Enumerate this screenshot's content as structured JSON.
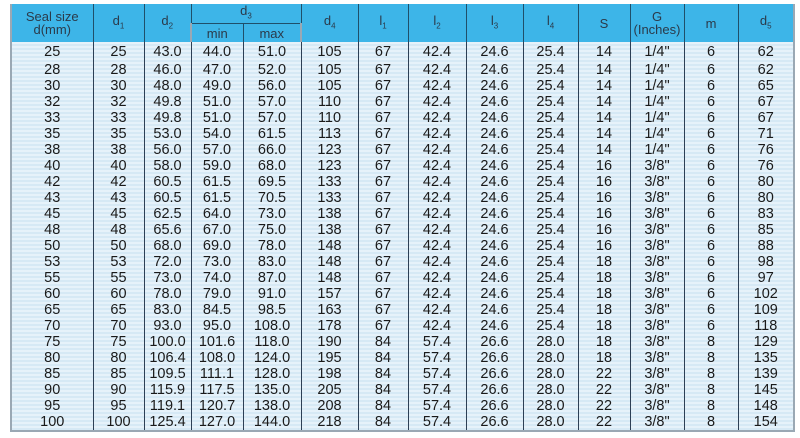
{
  "headers": {
    "seal_size": "Seal size",
    "seal_size_unit": "d(mm)",
    "d1": "d",
    "d1_sub": "1",
    "d2": "d",
    "d2_sub": "2",
    "d3": "d",
    "d3_sub": "3",
    "d3_min": "min",
    "d3_max": "max",
    "d4": "d",
    "d4_sub": "4",
    "l1": "l",
    "l1_sub": "1",
    "l2": "l",
    "l2_sub": "2",
    "l3": "l",
    "l3_sub": "3",
    "l4": "l",
    "l4_sub": "4",
    "s": "S",
    "g": "G",
    "g_unit": "(Inches)",
    "m": "m",
    "d5": "d",
    "d5_sub": "5"
  },
  "header_color": "#3db5e8",
  "rows": [
    [
      "25",
      "25",
      "43.0",
      "44.0",
      "51.0",
      "105",
      "67",
      "42.4",
      "24.6",
      "25.4",
      "14",
      "1/4\"",
      "6",
      "62"
    ],
    [
      "28",
      "28",
      "46.0",
      "47.0",
      "52.0",
      "105",
      "67",
      "42.4",
      "24.6",
      "25.4",
      "14",
      "1/4\"",
      "6",
      "62"
    ],
    [
      "30",
      "30",
      "48.0",
      "49.0",
      "56.0",
      "105",
      "67",
      "42.4",
      "24.6",
      "25.4",
      "14",
      "1/4\"",
      "6",
      "65"
    ],
    [
      "32",
      "32",
      "49.8",
      "51.0",
      "57.0",
      "110",
      "67",
      "42.4",
      "24.6",
      "25.4",
      "14",
      "1/4\"",
      "6",
      "67"
    ],
    [
      "33",
      "33",
      "49.8",
      "51.0",
      "57.0",
      "110",
      "67",
      "42.4",
      "24.6",
      "25.4",
      "14",
      "1/4\"",
      "6",
      "67"
    ],
    [
      "35",
      "35",
      "53.0",
      "54.0",
      "61.5",
      "113",
      "67",
      "42.4",
      "24.6",
      "25.4",
      "14",
      "1/4\"",
      "6",
      "71"
    ],
    [
      "38",
      "38",
      "56.0",
      "57.0",
      "66.0",
      "123",
      "67",
      "42.4",
      "24.6",
      "25.4",
      "14",
      "1/4\"",
      "6",
      "76"
    ],
    [
      "40",
      "40",
      "58.0",
      "59.0",
      "68.0",
      "123",
      "67",
      "42.4",
      "24.6",
      "25.4",
      "16",
      "3/8\"",
      "6",
      "76"
    ],
    [
      "42",
      "42",
      "60.5",
      "61.5",
      "69.5",
      "133",
      "67",
      "42.4",
      "24.6",
      "25.4",
      "16",
      "3/8\"",
      "6",
      "80"
    ],
    [
      "43",
      "43",
      "60.5",
      "61.5",
      "70.5",
      "133",
      "67",
      "42.4",
      "24.6",
      "25.4",
      "16",
      "3/8\"",
      "6",
      "80"
    ],
    [
      "45",
      "45",
      "62.5",
      "64.0",
      "73.0",
      "138",
      "67",
      "42.4",
      "24.6",
      "25.4",
      "16",
      "3/8\"",
      "6",
      "83"
    ],
    [
      "48",
      "48",
      "65.6",
      "67.0",
      "75.0",
      "138",
      "67",
      "42.4",
      "24.6",
      "25.4",
      "16",
      "3/8\"",
      "6",
      "85"
    ],
    [
      "50",
      "50",
      "68.0",
      "69.0",
      "78.0",
      "148",
      "67",
      "42.4",
      "24.6",
      "25.4",
      "16",
      "3/8\"",
      "6",
      "88"
    ],
    [
      "53",
      "53",
      "72.0",
      "73.0",
      "83.0",
      "148",
      "67",
      "42.4",
      "24.6",
      "25.4",
      "18",
      "3/8\"",
      "6",
      "98"
    ],
    [
      "55",
      "55",
      "73.0",
      "74.0",
      "87.0",
      "148",
      "67",
      "42.4",
      "24.6",
      "25.4",
      "18",
      "3/8\"",
      "6",
      "97"
    ],
    [
      "60",
      "60",
      "78.0",
      "79.0",
      "91.0",
      "157",
      "67",
      "42.4",
      "24.6",
      "25.4",
      "18",
      "3/8\"",
      "6",
      "102"
    ],
    [
      "65",
      "65",
      "83.0",
      "84.5",
      "98.5",
      "163",
      "67",
      "42.4",
      "24.6",
      "25.4",
      "18",
      "3/8\"",
      "6",
      "109"
    ],
    [
      "70",
      "70",
      "93.0",
      "95.0",
      "108.0",
      "178",
      "67",
      "42.4",
      "24.6",
      "25.4",
      "18",
      "3/8\"",
      "6",
      "118"
    ],
    [
      "75",
      "75",
      "100.0",
      "101.6",
      "118.0",
      "190",
      "84",
      "57.4",
      "26.6",
      "28.0",
      "18",
      "3/8\"",
      "8",
      "129"
    ],
    [
      "80",
      "80",
      "106.4",
      "108.0",
      "124.0",
      "195",
      "84",
      "57.4",
      "26.6",
      "28.0",
      "18",
      "3/8\"",
      "8",
      "135"
    ],
    [
      "85",
      "85",
      "109.5",
      "111.1",
      "128.0",
      "198",
      "84",
      "57.4",
      "26.6",
      "28.0",
      "22",
      "3/8\"",
      "8",
      "139"
    ],
    [
      "90",
      "90",
      "115.9",
      "117.5",
      "135.0",
      "205",
      "84",
      "57.4",
      "26.6",
      "28.0",
      "22",
      "3/8\"",
      "8",
      "145"
    ],
    [
      "95",
      "95",
      "119.1",
      "120.7",
      "138.0",
      "208",
      "84",
      "57.4",
      "26.6",
      "28.0",
      "22",
      "3/8\"",
      "8",
      "148"
    ],
    [
      "100",
      "100",
      "125.4",
      "127.0",
      "144.0",
      "218",
      "84",
      "57.4",
      "26.6",
      "28.0",
      "22",
      "3/8\"",
      "8",
      "154"
    ]
  ]
}
